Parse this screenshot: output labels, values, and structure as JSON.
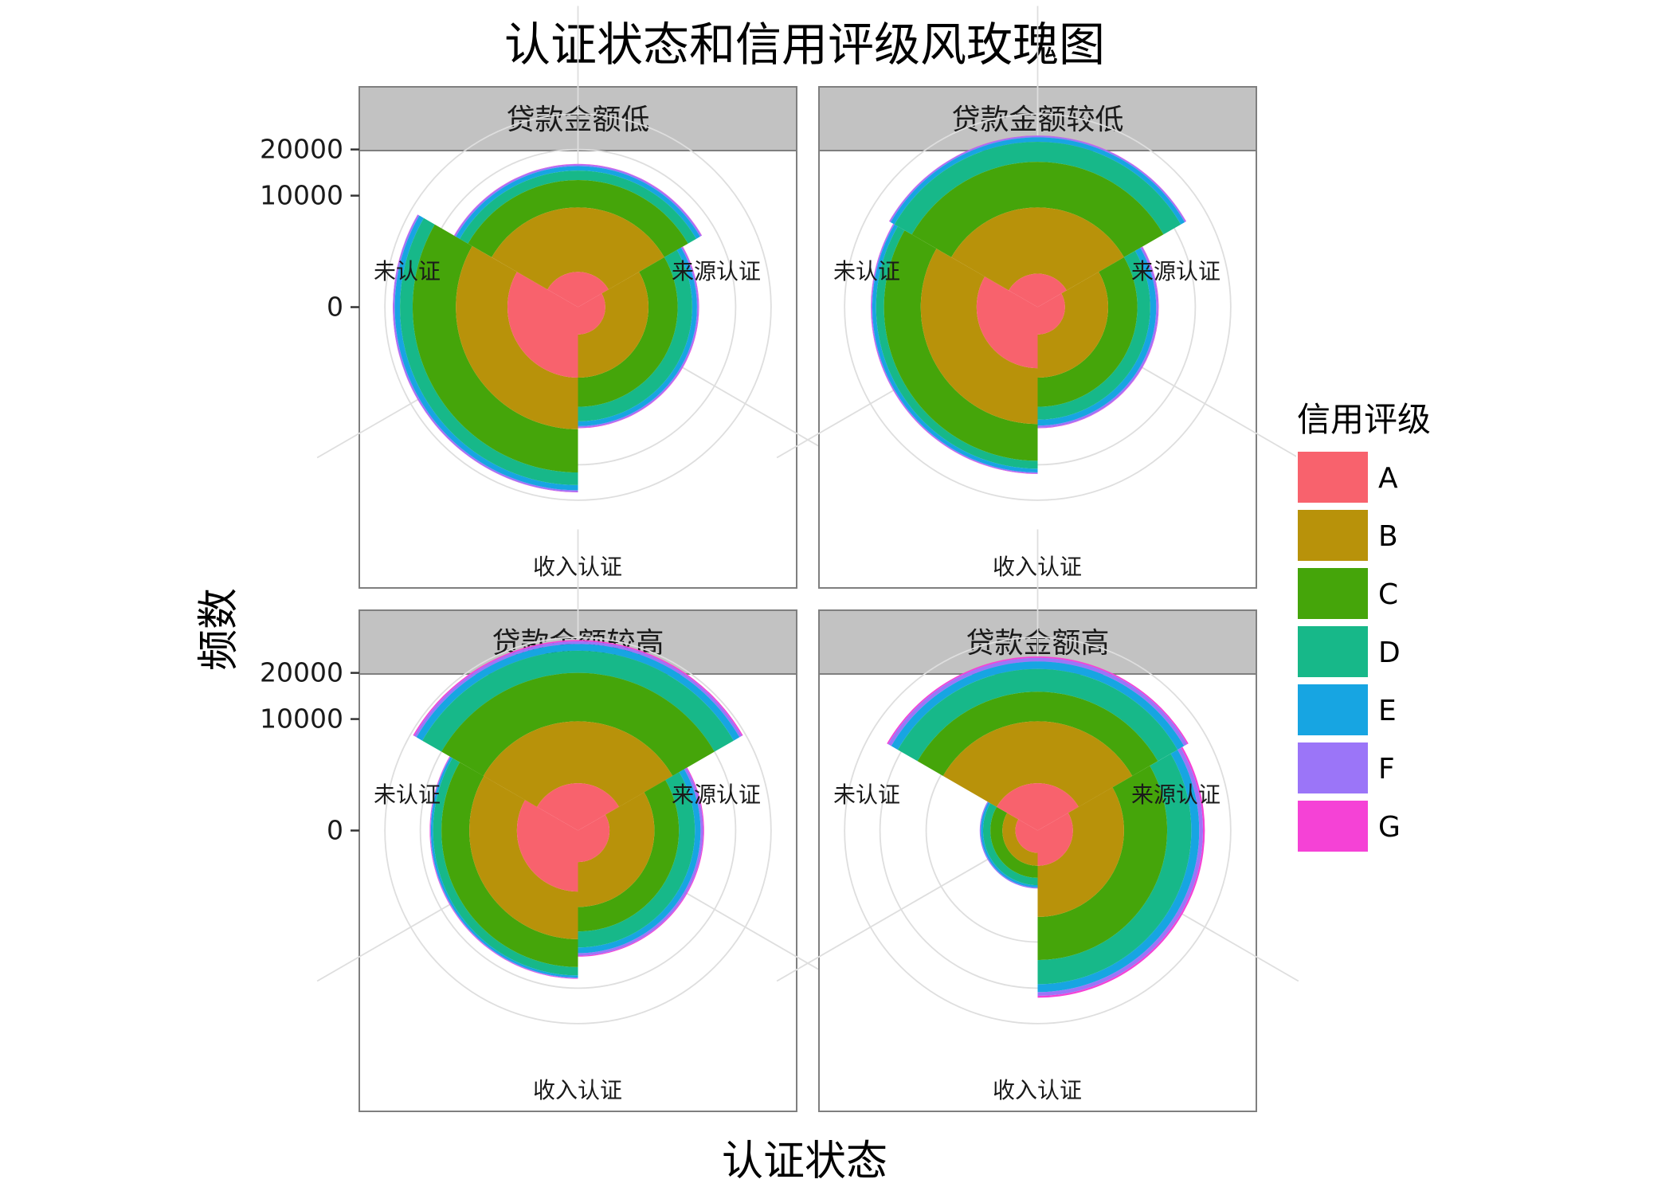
{
  "chart_data": {
    "type": "coxcomb",
    "title": "认证状态和信用评级风玫瑰图",
    "xlabel": "认证状态",
    "ylabel": "频数",
    "stacking": "cumulative",
    "categories": [
      "未认证",
      "来源认证",
      "收入认证"
    ],
    "rating_order": [
      "A",
      "B",
      "C",
      "D",
      "E",
      "F",
      "G"
    ],
    "y_ticks": [
      0,
      10000,
      20000
    ],
    "grid": true,
    "legend": {
      "title": "信用评级",
      "position": "right",
      "items": [
        {
          "label": "A",
          "color": "#F8766D"
        },
        {
          "label": "B",
          "color": "#B79F00"
        },
        {
          "label": "C",
          "color": "#00BA38"
        },
        {
          "label": "D",
          "color": "#00BFC4"
        },
        {
          "label": "E",
          "color": "#619CFF"
        },
        {
          "label": "F",
          "color": "#9590FF"
        },
        {
          "label": "G",
          "color": "#F564E3"
        }
      ]
    },
    "draw_colors": {
      "A": "#F8626D",
      "B": "#B8920A",
      "C": "#45A50A",
      "D": "#17B889",
      "E": "#17A5E2",
      "F": "#9B75F8",
      "G": "#F542D6"
    },
    "panels": [
      {
        "name": "贷款金额低",
        "cumulative": {
          "未认证": [
            4000,
            12000,
            22000,
            25500,
            27000,
            27500,
            27600
          ],
          "来源认证": [
            1000,
            8000,
            13000,
            15000,
            16000,
            16400,
            16500
          ],
          "收入认证": [
            600,
            4000,
            8000,
            10500,
            11400,
            11700,
            11800
          ]
        }
      },
      {
        "name": "贷款金额较低",
        "cumulative": {
          "未认证": [
            3000,
            11000,
            19000,
            21000,
            22000,
            22300,
            22400
          ],
          "来源认证": [
            900,
            8000,
            17000,
            22000,
            23200,
            23600,
            23700
          ],
          "收入认证": [
            600,
            4000,
            8000,
            10200,
            11300,
            11700,
            11800
          ]
        }
      },
      {
        "name": "贷款金额较高",
        "cumulative": {
          "未认证": [
            3000,
            9500,
            15000,
            16900,
            17400,
            17600,
            17700
          ],
          "来源认证": [
            1800,
            9600,
            20000,
            26000,
            28000,
            28800,
            29200
          ],
          "收入认证": [
            800,
            4700,
            8200,
            11000,
            12100,
            12600,
            12800
          ]
        }
      },
      {
        "name": "贷款金额高",
        "cumulative": {
          "未认证": [
            400,
            1000,
            1800,
            2400,
            2600,
            2700,
            2700
          ],
          "来源认证": [
            1800,
            9600,
            15500,
            21000,
            23000,
            24000,
            24400
          ],
          "收入认证": [
            1000,
            6000,
            13500,
            19000,
            21000,
            22000,
            22500
          ]
        }
      }
    ]
  }
}
